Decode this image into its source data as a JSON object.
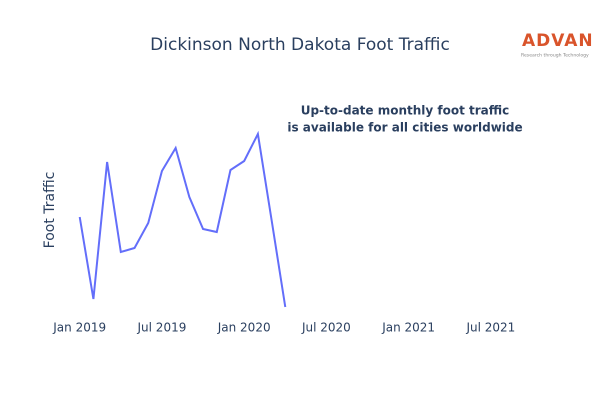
{
  "chart_data": {
    "type": "line",
    "title": "Dickinson North Dakota Foot Traffic",
    "ylabel": "Foot Traffic",
    "annotation": [
      "Up-to-date monthly foot traffic",
      "is available for all cities worldwide"
    ],
    "logo": {
      "name": "ADVAN",
      "tagline": "Research through Technology"
    },
    "x": [
      "2019-01",
      "2019-02",
      "2019-03",
      "2019-04",
      "2019-05",
      "2019-06",
      "2019-07",
      "2019-08",
      "2019-09",
      "2019-10",
      "2019-11",
      "2019-12",
      "2020-01",
      "2020-02",
      "2020-03",
      "2020-04"
    ],
    "series": [
      {
        "name": "Foot Traffic",
        "color": "#636efa",
        "values": [
          46.5,
          5.5,
          74,
          29,
          31,
          43.5,
          69.5,
          81,
          56.5,
          40.5,
          39,
          70,
          74.5,
          88,
          45,
          1.5
        ]
      }
    ],
    "xlim": [
      "2018-12",
      "2021-10"
    ],
    "xticks": [
      {
        "value": "2019-01",
        "label": "Jan 2019"
      },
      {
        "value": "2019-07",
        "label": "Jul 2019"
      },
      {
        "value": "2020-01",
        "label": "Jan 2020"
      },
      {
        "value": "2020-07",
        "label": "Jul 2020"
      },
      {
        "value": "2021-01",
        "label": "Jan 2021"
      },
      {
        "value": "2021-07",
        "label": "Jul 2021"
      }
    ],
    "ylim": [
      0,
      100
    ]
  }
}
